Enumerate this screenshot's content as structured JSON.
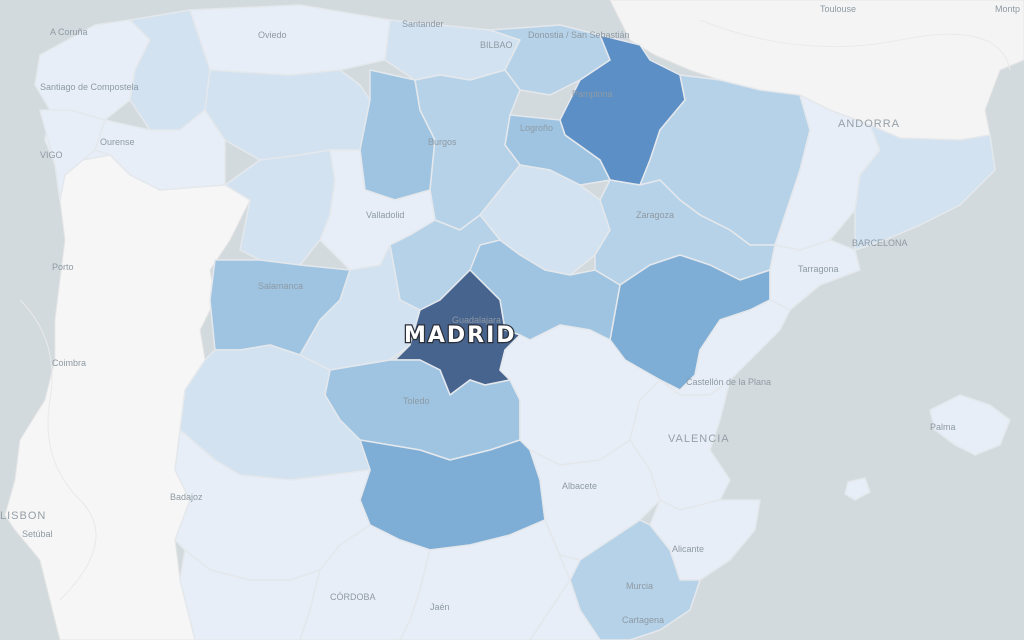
{
  "map": {
    "highlight_label": "MADRID",
    "colors": {
      "sea": "#d3dade",
      "land_neighbor": "#f4f4f4",
      "portugal": "#f6f6f6",
      "scale": [
        "#e7eef7",
        "#d2e2f0",
        "#b6d2e8",
        "#9ec4e2",
        "#7eaed6",
        "#5b8fc6",
        "#47648f"
      ]
    },
    "cities": [
      {
        "id": "a-coruna",
        "name": "A Coruña"
      },
      {
        "id": "santiago",
        "name": "Santiago de Compostela"
      },
      {
        "id": "oviedo",
        "name": "Oviedo"
      },
      {
        "id": "santander",
        "name": "Santander"
      },
      {
        "id": "bilbao",
        "name": "BILBAO"
      },
      {
        "id": "donostia",
        "name": "Donostia / San Sebastián"
      },
      {
        "id": "toulouse",
        "name": "Toulouse"
      },
      {
        "id": "montpellier",
        "name": "Montp"
      },
      {
        "id": "vigo",
        "name": "VIGO"
      },
      {
        "id": "ourense",
        "name": "Ourense"
      },
      {
        "id": "burgos",
        "name": "Burgos"
      },
      {
        "id": "logrono",
        "name": "Logroño"
      },
      {
        "id": "pamplona",
        "name": "Pamplona"
      },
      {
        "id": "andorra",
        "name": "ANDORRA"
      },
      {
        "id": "valladolid",
        "name": "Valladolid"
      },
      {
        "id": "zaragoza",
        "name": "Zaragoza"
      },
      {
        "id": "barcelona",
        "name": "BARCELONA"
      },
      {
        "id": "porto",
        "name": "Porto"
      },
      {
        "id": "tarragona",
        "name": "Tarragona"
      },
      {
        "id": "salamanca",
        "name": "Salamanca"
      },
      {
        "id": "guadalajara",
        "name": "Guadalajara"
      },
      {
        "id": "coimbra",
        "name": "Coimbra"
      },
      {
        "id": "castellon",
        "name": "Castellón de la Plana"
      },
      {
        "id": "toledo",
        "name": "Toledo"
      },
      {
        "id": "palma",
        "name": "Palma"
      },
      {
        "id": "valencia",
        "name": "VALENCIA"
      },
      {
        "id": "albacete",
        "name": "Albacete"
      },
      {
        "id": "badajoz",
        "name": "Badajoz"
      },
      {
        "id": "lisbon",
        "name": "LISBON"
      },
      {
        "id": "setubal",
        "name": "Setúbal"
      },
      {
        "id": "alicante",
        "name": "Alicante"
      },
      {
        "id": "murcia",
        "name": "Murcia"
      },
      {
        "id": "cordoba",
        "name": "CÓRDOBA"
      },
      {
        "id": "jaen",
        "name": "Jaén"
      },
      {
        "id": "cartagena",
        "name": "Cartagena"
      }
    ]
  }
}
